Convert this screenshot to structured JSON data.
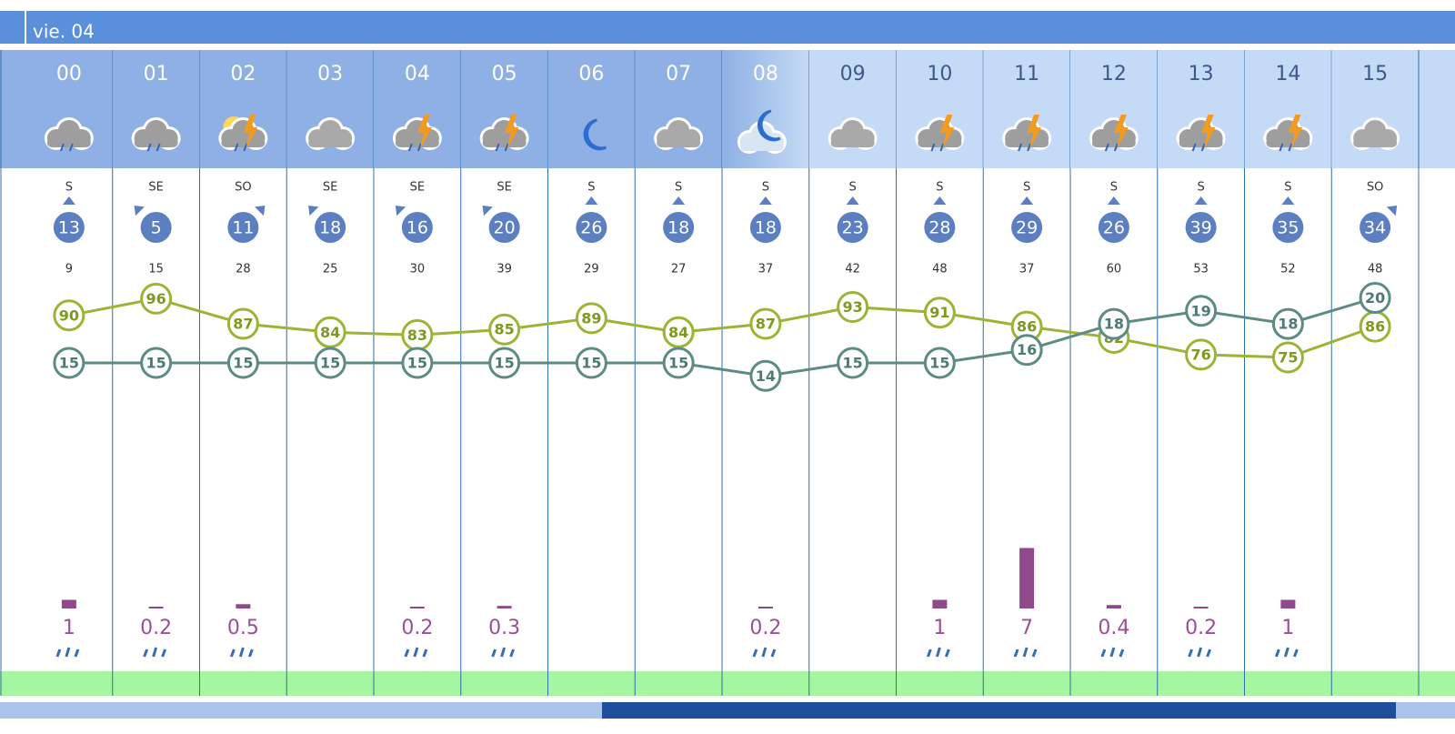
{
  "header": {
    "date": "vie. 04"
  },
  "hours": [
    "00",
    "01",
    "02",
    "03",
    "04",
    "05",
    "06",
    "07",
    "08",
    "09",
    "10",
    "11",
    "12",
    "13",
    "14",
    "15"
  ],
  "wind": {
    "directions": [
      "S",
      "SE",
      "SO",
      "SE",
      "SE",
      "SE",
      "S",
      "S",
      "S",
      "S",
      "S",
      "S",
      "S",
      "S",
      "S",
      "SO"
    ],
    "speeds": [
      13,
      5,
      11,
      18,
      16,
      20,
      26,
      18,
      18,
      23,
      28,
      29,
      26,
      39,
      35,
      34
    ]
  },
  "gusts": [
    9,
    15,
    28,
    25,
    30,
    39,
    29,
    27,
    37,
    42,
    48,
    37,
    60,
    53,
    52,
    48
  ],
  "humidity": [
    90,
    96,
    87,
    84,
    83,
    85,
    89,
    84,
    87,
    93,
    91,
    86,
    82,
    76,
    75,
    86
  ],
  "temperature": [
    15,
    15,
    15,
    15,
    15,
    15,
    15,
    15,
    14,
    15,
    15,
    16,
    18,
    19,
    18,
    20
  ],
  "precipitation": [
    1,
    0.2,
    0.5,
    null,
    0.2,
    0.3,
    null,
    null,
    0.2,
    null,
    1,
    7,
    0.4,
    0.2,
    1,
    null
  ]
}
